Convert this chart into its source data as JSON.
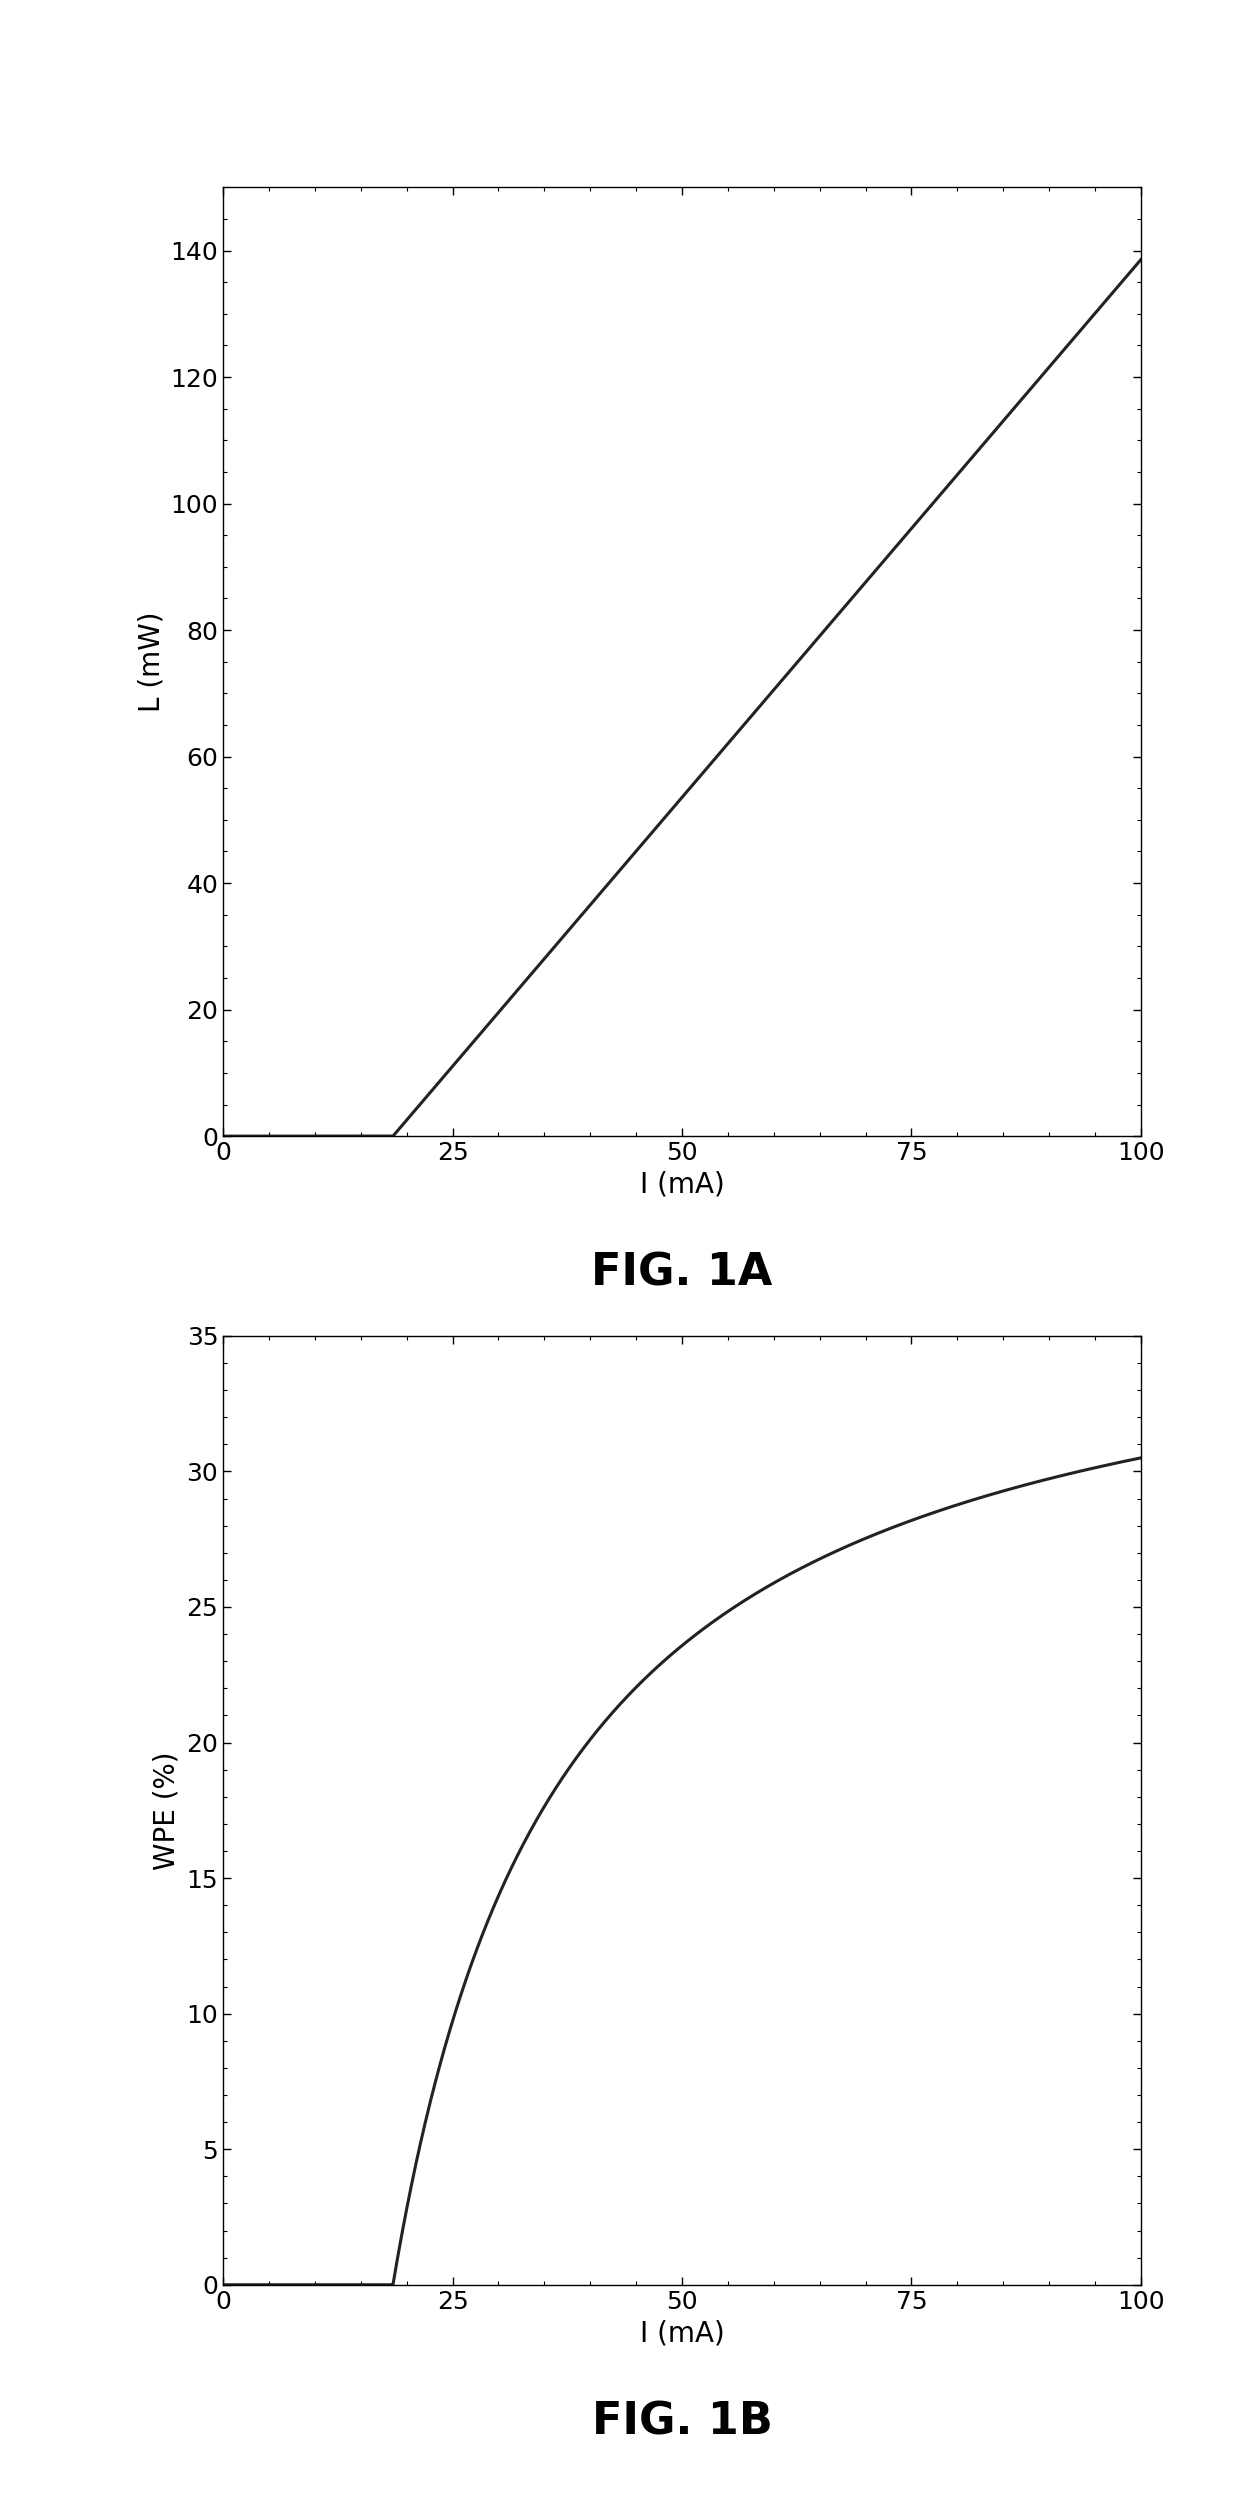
{
  "fig1a": {
    "title": "FIG. 1A",
    "xlabel": "I (mA)",
    "ylabel": "L (mW)",
    "xlim": [
      0,
      100
    ],
    "ylim": [
      0,
      150
    ],
    "xticks": [
      0,
      25,
      50,
      75,
      100
    ],
    "yticks": [
      0,
      20,
      40,
      60,
      80,
      100,
      120,
      140
    ],
    "threshold_I": 18.5,
    "slope_mW_per_mA": 1.7,
    "I_max": 100.0
  },
  "fig1b": {
    "title": "FIG. 1B",
    "xlabel": "I (mA)",
    "ylabel": "WPE (%)",
    "xlim": [
      0,
      100
    ],
    "ylim": [
      0,
      35
    ],
    "xticks": [
      0,
      25,
      50,
      75,
      100
    ],
    "yticks": [
      0,
      5,
      10,
      15,
      20,
      25,
      30,
      35
    ],
    "threshold_I": 18.5,
    "I_max": 100.0,
    "wpe_max": 30.5
  },
  "background_color": "#ffffff",
  "line_color": "#222222",
  "line_width": 2.2,
  "font_family": "DejaVu Sans",
  "label_fontsize": 20,
  "tick_fontsize": 18,
  "caption_fontsize": 32
}
